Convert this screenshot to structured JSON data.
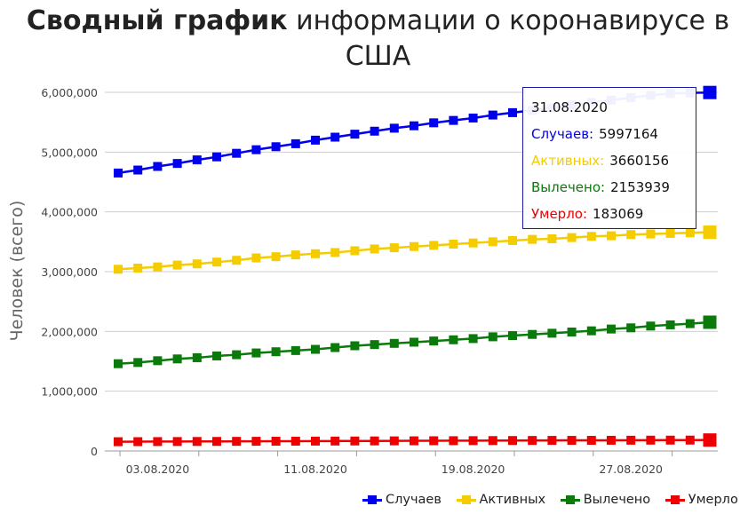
{
  "title": {
    "bold": "Сводный график",
    "rest_line1": "информации о коронавирусе в",
    "line2": "США"
  },
  "chart_data": {
    "type": "line",
    "ylabel": "Человек (всего)",
    "xlabel": "",
    "ylim": [
      0,
      6000000
    ],
    "yticks": [
      "0",
      "1,000,000",
      "2,000,000",
      "3,000,000",
      "4,000,000",
      "5,000,000",
      "6,000,000"
    ],
    "xtick_labels": [
      "03.08.2020",
      "11.08.2020",
      "19.08.2020",
      "27.08.2020"
    ],
    "grid": "horizontal",
    "legend_position": "bottom-right",
    "x": [
      "01.08.2020",
      "02.08.2020",
      "03.08.2020",
      "04.08.2020",
      "05.08.2020",
      "06.08.2020",
      "07.08.2020",
      "08.08.2020",
      "09.08.2020",
      "10.08.2020",
      "11.08.2020",
      "12.08.2020",
      "13.08.2020",
      "14.08.2020",
      "15.08.2020",
      "16.08.2020",
      "17.08.2020",
      "18.08.2020",
      "19.08.2020",
      "20.08.2020",
      "21.08.2020",
      "22.08.2020",
      "23.08.2020",
      "24.08.2020",
      "25.08.2020",
      "26.08.2020",
      "27.08.2020",
      "28.08.2020",
      "29.08.2020",
      "30.08.2020",
      "31.08.2020"
    ],
    "series": [
      {
        "name": "Случаев",
        "color": "#0000ee",
        "values": [
          4650000,
          4700000,
          4760000,
          4810000,
          4870000,
          4920000,
          4980000,
          5040000,
          5090000,
          5140000,
          5200000,
          5250000,
          5300000,
          5350000,
          5400000,
          5440000,
          5490000,
          5530000,
          5570000,
          5620000,
          5660000,
          5700000,
          5740000,
          5790000,
          5830000,
          5870000,
          5910000,
          5950000,
          5980000,
          5990000,
          5997164
        ]
      },
      {
        "name": "Активных",
        "color": "#f5cc00",
        "values": [
          3040000,
          3060000,
          3080000,
          3110000,
          3130000,
          3160000,
          3190000,
          3230000,
          3250000,
          3280000,
          3300000,
          3320000,
          3350000,
          3380000,
          3400000,
          3420000,
          3440000,
          3460000,
          3480000,
          3500000,
          3520000,
          3540000,
          3550000,
          3570000,
          3590000,
          3600000,
          3620000,
          3630000,
          3640000,
          3650000,
          3660156
        ]
      },
      {
        "name": "Вылечено",
        "color": "#0a7a0a",
        "values": [
          1460000,
          1480000,
          1510000,
          1540000,
          1560000,
          1590000,
          1610000,
          1640000,
          1660000,
          1680000,
          1700000,
          1730000,
          1760000,
          1780000,
          1800000,
          1820000,
          1840000,
          1860000,
          1880000,
          1910000,
          1930000,
          1950000,
          1970000,
          1990000,
          2010000,
          2040000,
          2060000,
          2090000,
          2110000,
          2130000,
          2153939
        ]
      },
      {
        "name": "Умерло",
        "color": "#ee0000",
        "values": [
          155000,
          156000,
          157000,
          158000,
          159000,
          160000,
          161000,
          162000,
          163000,
          164000,
          165000,
          166000,
          167000,
          168000,
          169000,
          170000,
          171000,
          172000,
          173000,
          174000,
          175000,
          176000,
          177000,
          177500,
          178000,
          179000,
          180000,
          181000,
          181500,
          182000,
          183069
        ]
      }
    ]
  },
  "tooltip": {
    "date": "31.08.2020",
    "cases_label": "Случаев:",
    "cases_value": "5997164",
    "active_label": "Активных:",
    "active_value": "3660156",
    "recovered_label": "Вылечено:",
    "recovered_value": "2153939",
    "deaths_label": "Умерло:",
    "deaths_value": "183069"
  },
  "legend": {
    "cases": "Случаев",
    "active": "Активных",
    "recovered": "Вылечено",
    "deaths": "Умерло"
  }
}
